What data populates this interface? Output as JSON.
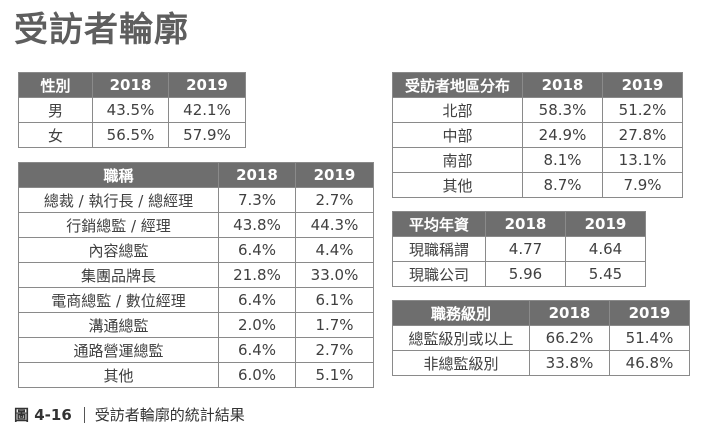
{
  "page": {
    "title": "受訪者輪廓",
    "caption": {
      "figure_number": "圖 4-16",
      "text": "受訪者輪廓的統計結果"
    }
  },
  "tables": [
    {
      "id": "gender",
      "headers": [
        "性別",
        "2018",
        "2019"
      ],
      "rows": [
        [
          "男",
          "43.5%",
          "42.1%"
        ],
        [
          "女",
          "56.5%",
          "57.9%"
        ]
      ]
    },
    {
      "id": "job-title",
      "headers": [
        "職稱",
        "2018",
        "2019"
      ],
      "rows": [
        [
          "總裁 / 執行長 / 總經理",
          "7.3%",
          "2.7%"
        ],
        [
          "行銷總監 / 經理",
          "43.8%",
          "44.3%"
        ],
        [
          "內容總監",
          "6.4%",
          "4.4%"
        ],
        [
          "集團品牌長",
          "21.8%",
          "33.0%"
        ],
        [
          "電商總監 / 數位經理",
          "6.4%",
          "6.1%"
        ],
        [
          "溝通總監",
          "2.0%",
          "1.7%"
        ],
        [
          "通路營運總監",
          "6.4%",
          "2.7%"
        ],
        [
          "其他",
          "6.0%",
          "5.1%"
        ]
      ]
    },
    {
      "id": "region",
      "headers": [
        "受訪者地區分布",
        "2018",
        "2019"
      ],
      "rows": [
        [
          "北部",
          "58.3%",
          "51.2%"
        ],
        [
          "中部",
          "24.9%",
          "27.8%"
        ],
        [
          "南部",
          "8.1%",
          "13.1%"
        ],
        [
          "其他",
          "8.7%",
          "7.9%"
        ]
      ]
    },
    {
      "id": "seniority",
      "headers": [
        "平均年資",
        "2018",
        "2019"
      ],
      "rows": [
        [
          "現職稱謂",
          "4.77",
          "4.64"
        ],
        [
          "現職公司",
          "5.96",
          "5.45"
        ]
      ]
    },
    {
      "id": "job-level",
      "headers": [
        "職務級別",
        "2018",
        "2019"
      ],
      "rows": [
        [
          "總監級別或以上",
          "66.2%",
          "51.4%"
        ],
        [
          "非總監級別",
          "33.8%",
          "46.8%"
        ]
      ]
    }
  ]
}
